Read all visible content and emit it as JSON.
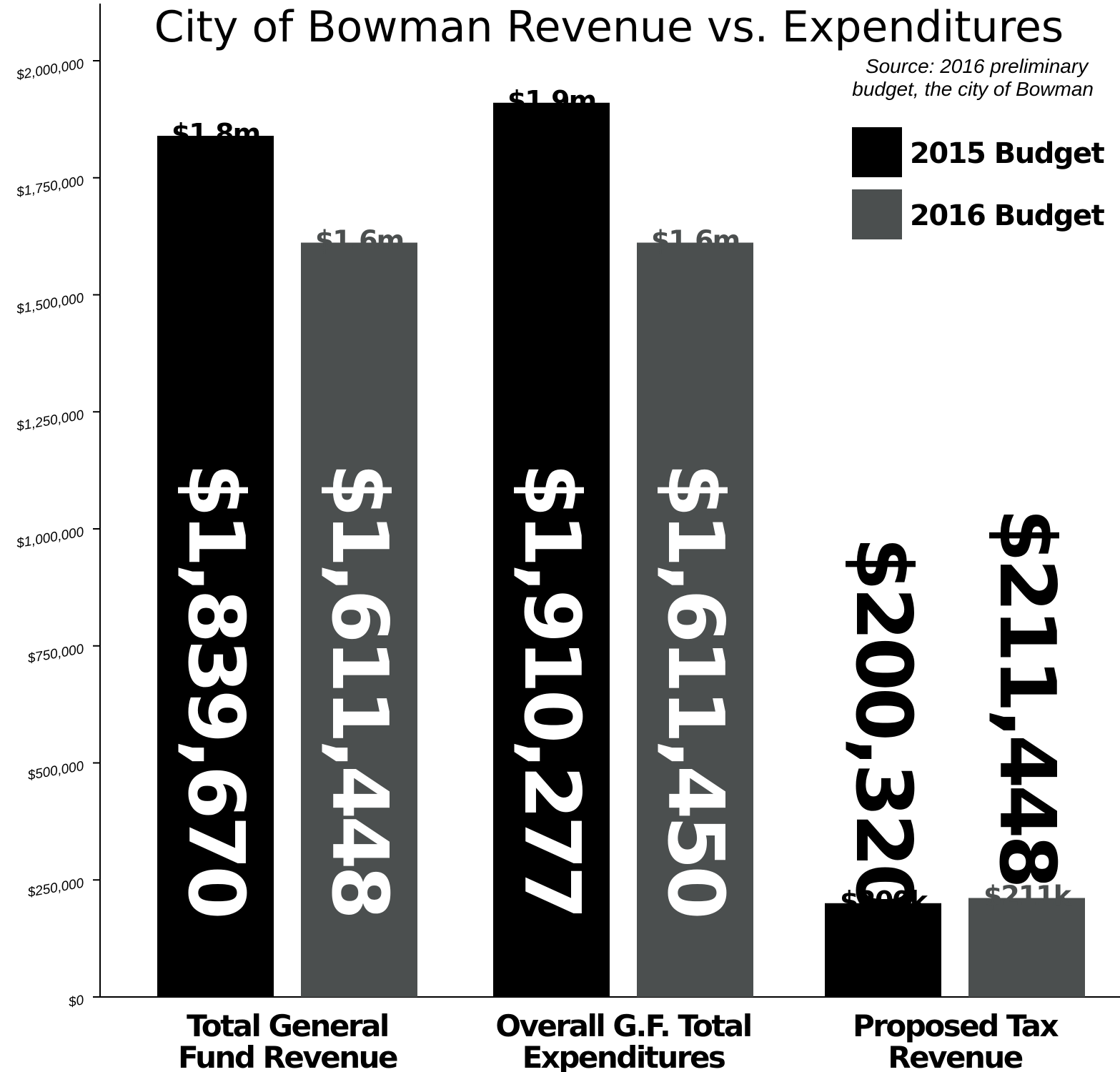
{
  "chart_data": {
    "type": "bar",
    "title": "City of Bowman Revenue vs. Expenditures",
    "source": "Source: 2016 preliminary budget, the city of Bowman",
    "source_lines": [
      "Source: 2016 preliminary",
      "budget, the city of Bowman"
    ],
    "categories": [
      [
        "Total General",
        "Fund Revenue"
      ],
      [
        "Overall G.F. Total",
        "Expenditures"
      ],
      [
        "Proposed Tax",
        "Revenue"
      ]
    ],
    "ylim": [
      0,
      2000000
    ],
    "yticks": [
      {
        "value": 0,
        "label": "$0"
      },
      {
        "value": 250000,
        "label": "$250,000"
      },
      {
        "value": 500000,
        "label": "$500,000"
      },
      {
        "value": 750000,
        "label": "$750,000"
      },
      {
        "value": 1000000,
        "label": "$1,000,000"
      },
      {
        "value": 1250000,
        "label": "$1,250,000"
      },
      {
        "value": 1500000,
        "label": "$1,500,000"
      },
      {
        "value": 1750000,
        "label": "$1,750,000"
      },
      {
        "value": 2000000,
        "label": "$2,000,000"
      }
    ],
    "legend_position": "top-right",
    "series": [
      {
        "name": "2015 Budget",
        "color": "#000000",
        "values": [
          1839670,
          1910277,
          200320
        ],
        "short_labels": [
          "$1.8m",
          "$1.9m",
          "$200k"
        ],
        "full_labels": [
          "$1,839,670",
          "$1,910,277",
          "$200,320"
        ]
      },
      {
        "name": "2016 Budget",
        "color": "#4b4f4f",
        "values": [
          1611448,
          1611450,
          211448
        ],
        "short_labels": [
          "$1.6m",
          "$1.6m",
          "$211k"
        ],
        "full_labels": [
          "$1,611,448",
          "$1,611,450",
          "$211,448"
        ]
      }
    ]
  }
}
